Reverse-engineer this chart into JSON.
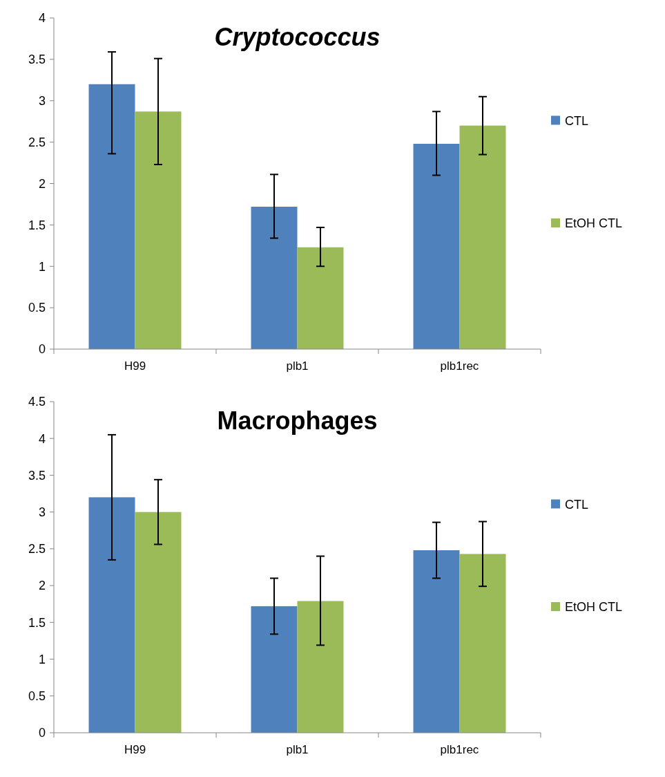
{
  "chart_data": [
    {
      "type": "bar",
      "title": "Cryptococcus",
      "categories": [
        "H99",
        "plb1",
        "plb1rec"
      ],
      "ylim": [
        0,
        4
      ],
      "yticks": [
        0,
        0.5,
        1,
        1.5,
        2,
        2.5,
        3,
        3.5,
        4
      ],
      "legend": "right",
      "series": [
        {
          "name": "CTL",
          "color": "#4f81bd",
          "values": [
            3.2,
            1.72,
            2.48
          ],
          "errors": [
            [
              2.36,
              3.59
            ],
            [
              1.34,
              2.11
            ],
            [
              2.1,
              2.87
            ]
          ]
        },
        {
          "name": "EtOH CTL",
          "color": "#9bbb59",
          "values": [
            2.87,
            1.23,
            2.7
          ],
          "errors": [
            [
              2.23,
              3.51
            ],
            [
              1.0,
              1.47
            ],
            [
              2.35,
              3.05
            ]
          ]
        }
      ]
    },
    {
      "type": "bar",
      "title": "Macrophages",
      "categories": [
        "H99",
        "plb1",
        "plb1rec"
      ],
      "ylim": [
        0,
        4.5
      ],
      "yticks": [
        0,
        0.5,
        1,
        1.5,
        2,
        2.5,
        3,
        3.5,
        4,
        4.5
      ],
      "legend": "right",
      "series": [
        {
          "name": "CTL",
          "color": "#4f81bd",
          "values": [
            3.2,
            1.72,
            2.48
          ],
          "errors": [
            [
              2.35,
              4.05
            ],
            [
              1.34,
              2.1
            ],
            [
              2.1,
              2.86
            ]
          ]
        },
        {
          "name": "EtOH CTL",
          "color": "#9bbb59",
          "values": [
            3.0,
            1.79,
            2.43
          ],
          "errors": [
            [
              2.56,
              3.44
            ],
            [
              1.19,
              2.4
            ],
            [
              1.99,
              2.87
            ]
          ]
        }
      ]
    }
  ]
}
